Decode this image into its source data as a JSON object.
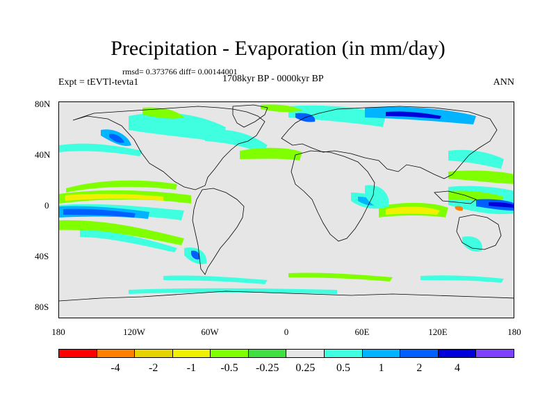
{
  "figure": {
    "title": "Precipitation - Evaporation (in mm/day)",
    "stats": "rmsd= 0.373766  diff= 0.00144001",
    "left_label": "Expt = tEVTl-tevta1",
    "center_label": "1708kyr BP - 0000kyr BP",
    "right_label": "ANN"
  },
  "chart_data": {
    "type": "map",
    "variable": "Precipitation - Evaporation difference",
    "units": "mm/day",
    "lat_ticks": [
      "80N",
      "40N",
      "0",
      "40S",
      "80S"
    ],
    "lon_ticks": [
      "180",
      "120W",
      "60W",
      "0",
      "60E",
      "120E",
      "180"
    ],
    "colorbar": {
      "colors": [
        "#ff0000",
        "#ff8000",
        "#e6d400",
        "#f0f000",
        "#80ff00",
        "#40e040",
        "#e6e6e6",
        "#40ffe0",
        "#00b4ff",
        "#0060ff",
        "#0000dc",
        "#8040ff"
      ],
      "labels": [
        "-4",
        "-2",
        "-1",
        "-0.5",
        "-0.25",
        "0.25",
        "0.5",
        "1",
        "2",
        "4"
      ]
    },
    "anomaly_regions": [
      {
        "name": "tropical-pacific-dry-band",
        "lon": -140,
        "lat": 0,
        "value": -0.5
      },
      {
        "name": "east-pacific-wet-core",
        "lon": -140,
        "lat": -6,
        "value": 2
      },
      {
        "name": "pacific-itcz-wet-band",
        "lon": -130,
        "lat": 10,
        "value": 0.5
      },
      {
        "name": "south-pacific-dry-band",
        "lon": -130,
        "lat": -18,
        "value": -0.5
      },
      {
        "name": "indian-ocean-dry-band",
        "lon": 75,
        "lat": -4,
        "value": -1
      },
      {
        "name": "western-pacific-wet-core",
        "lon": 150,
        "lat": 0,
        "value": 2
      },
      {
        "name": "maritime-continent-wet",
        "lon": 120,
        "lat": -3,
        "value": 1
      },
      {
        "name": "north-atlantic-wet",
        "lon": -40,
        "lat": 52,
        "value": 0.5
      },
      {
        "name": "scandinavia-wet",
        "lon": 15,
        "lat": 65,
        "value": 1
      },
      {
        "name": "siberia-wet",
        "lon": 90,
        "lat": 64,
        "value": 1
      },
      {
        "name": "north-pacific-dry",
        "lon": -160,
        "lat": 40,
        "value": -0.25
      },
      {
        "name": "alaska-coast-wet",
        "lon": -140,
        "lat": 57,
        "value": 1
      },
      {
        "name": "southern-ocean-dry",
        "lon": -30,
        "lat": -56,
        "value": -0.25
      },
      {
        "name": "east-africa-wet",
        "lon": 40,
        "lat": -2,
        "value": 0.5
      }
    ]
  }
}
